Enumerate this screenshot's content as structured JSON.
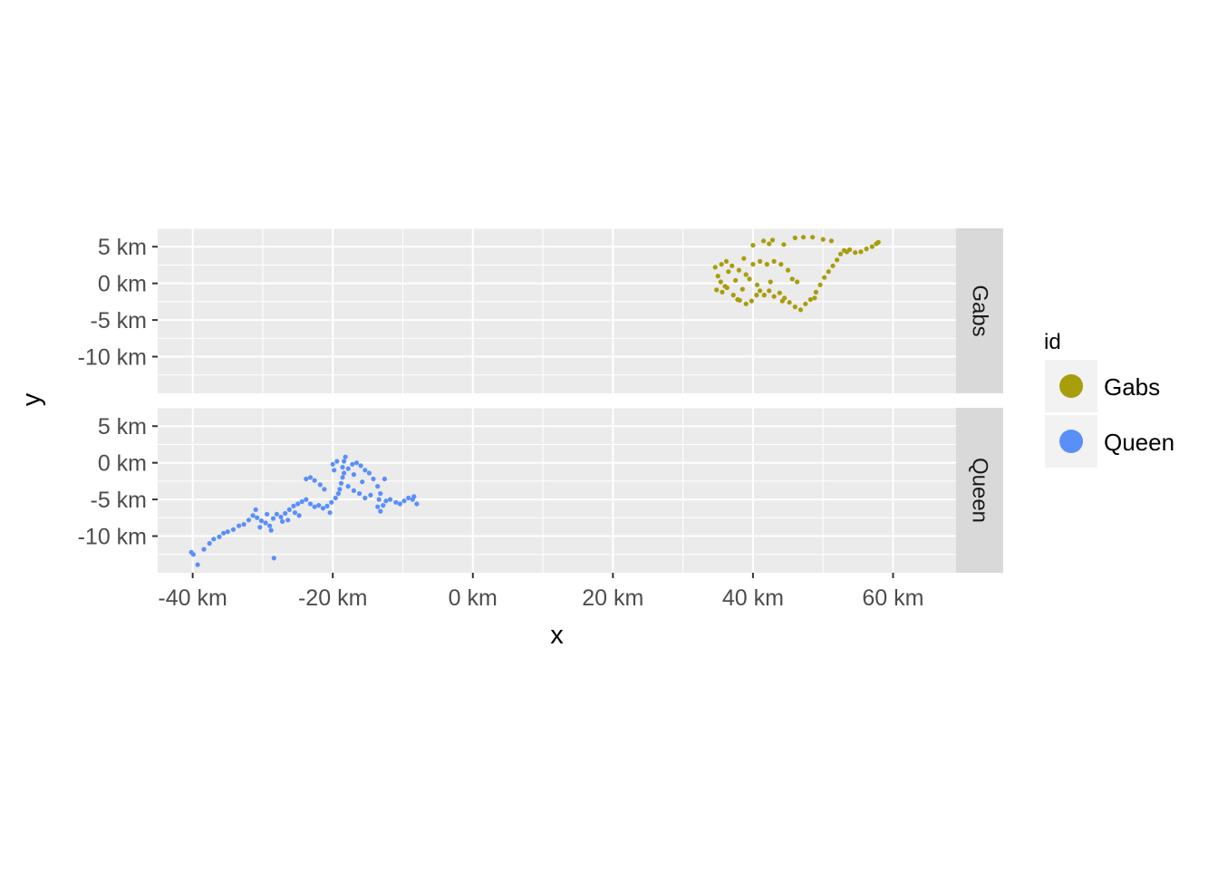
{
  "chart_data": {
    "type": "scatter",
    "facet_by": "id",
    "xlabel": "x",
    "ylabel": "y",
    "xlim": [
      -45,
      69
    ],
    "ylim": [
      -15,
      7.5
    ],
    "x_ticks": [
      -40,
      -20,
      0,
      20,
      40,
      60
    ],
    "x_tick_labels": [
      "-40 km",
      "-20 km",
      "0 km",
      "20 km",
      "40 km",
      "60 km"
    ],
    "y_ticks": [
      5,
      0,
      -5,
      -10
    ],
    "y_tick_labels": [
      "5 km",
      "0 km",
      "-5 km",
      "-10 km"
    ],
    "grid": true,
    "legend": {
      "title": "id",
      "position": "right",
      "entries": [
        "Gabs",
        "Queen"
      ]
    },
    "panels": [
      {
        "strip": "Gabs",
        "color": "#A89D0B",
        "points": [
          [
            34.6,
            2.2
          ],
          [
            35.0,
            1.0
          ],
          [
            35.5,
            2.6
          ],
          [
            36.0,
            -0.4
          ],
          [
            36.5,
            1.6
          ],
          [
            37.0,
            2.4
          ],
          [
            37.5,
            0.4
          ],
          [
            38.0,
            1.8
          ],
          [
            38.5,
            -0.8
          ],
          [
            39.0,
            1.2
          ],
          [
            34.8,
            -0.9
          ],
          [
            35.6,
            -1.2
          ],
          [
            36.3,
            -0.6
          ],
          [
            37.2,
            -1.6
          ],
          [
            38.1,
            -2.3
          ],
          [
            39.0,
            -2.8
          ],
          [
            39.8,
            -2.4
          ],
          [
            40.5,
            -1.6
          ],
          [
            41.0,
            -1.0
          ],
          [
            41.6,
            -1.6
          ],
          [
            42.3,
            -1.0
          ],
          [
            43.0,
            -1.8
          ],
          [
            43.8,
            -1.3
          ],
          [
            44.5,
            -2.0
          ],
          [
            45.2,
            -2.6
          ],
          [
            46.0,
            -3.2
          ],
          [
            46.8,
            -3.6
          ],
          [
            47.5,
            -2.8
          ],
          [
            48.2,
            -2.2
          ],
          [
            49.0,
            -1.2
          ],
          [
            49.6,
            -0.2
          ],
          [
            50.2,
            0.8
          ],
          [
            50.8,
            1.6
          ],
          [
            51.4,
            2.4
          ],
          [
            52.0,
            3.2
          ],
          [
            52.5,
            4.0
          ],
          [
            53.0,
            4.5
          ],
          [
            53.8,
            4.6
          ],
          [
            54.6,
            4.2
          ],
          [
            55.4,
            4.3
          ],
          [
            56.2,
            4.7
          ],
          [
            57.0,
            5.0
          ],
          [
            57.6,
            5.4
          ],
          [
            57.9,
            5.6
          ],
          [
            40.0,
            2.6
          ],
          [
            41.0,
            3.0
          ],
          [
            42.0,
            2.6
          ],
          [
            43.0,
            3.0
          ],
          [
            44.0,
            2.6
          ],
          [
            45.0,
            1.8
          ],
          [
            45.6,
            0.6
          ],
          [
            46.3,
            0.2
          ],
          [
            39.5,
            0.6
          ],
          [
            40.6,
            -0.2
          ],
          [
            42.5,
            0.2
          ],
          [
            41.5,
            5.8
          ],
          [
            42.3,
            5.4
          ],
          [
            42.8,
            5.9
          ],
          [
            44.4,
            5.3
          ],
          [
            46.0,
            6.2
          ],
          [
            47.2,
            6.3
          ],
          [
            48.5,
            6.3
          ],
          [
            50.0,
            6.0
          ],
          [
            51.2,
            5.8
          ],
          [
            40.0,
            5.2
          ],
          [
            38.7,
            3.4
          ],
          [
            36.2,
            3.0
          ],
          [
            35.4,
            0.2
          ],
          [
            37.8,
            -2.2
          ],
          [
            44.2,
            -2.4
          ],
          [
            48.8,
            -2.0
          ],
          [
            53.4,
            4.3
          ]
        ]
      },
      {
        "strip": "Queen",
        "color": "#5A8FF9",
        "points": [
          [
            -40.2,
            -12.2
          ],
          [
            -39.9,
            -12.5
          ],
          [
            -39.3,
            -13.9
          ],
          [
            -38.4,
            -11.8
          ],
          [
            -37.6,
            -11.0
          ],
          [
            -37.0,
            -10.4
          ],
          [
            -36.2,
            -10.1
          ],
          [
            -35.6,
            -9.6
          ],
          [
            -35.0,
            -9.4
          ],
          [
            -34.2,
            -9.1
          ],
          [
            -33.4,
            -8.6
          ],
          [
            -32.7,
            -8.4
          ],
          [
            -32.0,
            -7.8
          ],
          [
            -31.4,
            -7.2
          ],
          [
            -30.8,
            -7.5
          ],
          [
            -30.2,
            -7.9
          ],
          [
            -29.6,
            -8.2
          ],
          [
            -29.0,
            -8.6
          ],
          [
            -28.5,
            -7.6
          ],
          [
            -28.0,
            -7.0
          ],
          [
            -27.4,
            -7.4
          ],
          [
            -26.8,
            -6.9
          ],
          [
            -26.2,
            -6.4
          ],
          [
            -25.6,
            -5.9
          ],
          [
            -25.0,
            -5.6
          ],
          [
            -24.4,
            -5.3
          ],
          [
            -23.8,
            -5.0
          ],
          [
            -23.2,
            -5.6
          ],
          [
            -22.6,
            -6.0
          ],
          [
            -22.0,
            -5.8
          ],
          [
            -21.4,
            -6.2
          ],
          [
            -20.8,
            -5.9
          ],
          [
            -20.2,
            -5.4
          ],
          [
            -19.6,
            -4.8
          ],
          [
            -19.2,
            -4.2
          ],
          [
            -19.0,
            -3.6
          ],
          [
            -18.8,
            -2.8
          ],
          [
            -18.6,
            -2.0
          ],
          [
            -18.4,
            -1.4
          ],
          [
            -18.6,
            -0.6
          ],
          [
            -18.4,
            0.2
          ],
          [
            -18.2,
            0.8
          ],
          [
            -19.4,
            0.2
          ],
          [
            -20.0,
            -0.2
          ],
          [
            -19.8,
            -1.0
          ],
          [
            -17.8,
            -0.8
          ],
          [
            -17.2,
            -0.2
          ],
          [
            -16.6,
            0.0
          ],
          [
            -16.0,
            -0.4
          ],
          [
            -15.4,
            -1.0
          ],
          [
            -14.8,
            -1.4
          ],
          [
            -14.2,
            -2.2
          ],
          [
            -13.6,
            -3.2
          ],
          [
            -13.2,
            -4.2
          ],
          [
            -13.4,
            -5.0
          ],
          [
            -13.6,
            -6.0
          ],
          [
            -13.2,
            -6.6
          ],
          [
            -12.8,
            -5.8
          ],
          [
            -12.4,
            -5.2
          ],
          [
            -11.8,
            -5.0
          ],
          [
            -11.0,
            -5.4
          ],
          [
            -10.4,
            -5.6
          ],
          [
            -9.8,
            -5.2
          ],
          [
            -9.2,
            -4.8
          ],
          [
            -8.6,
            -5.0
          ],
          [
            -8.0,
            -5.6
          ],
          [
            -8.4,
            -4.6
          ],
          [
            -17.8,
            -3.2
          ],
          [
            -17.0,
            -3.8
          ],
          [
            -16.2,
            -4.2
          ],
          [
            -15.4,
            -4.8
          ],
          [
            -14.6,
            -4.4
          ],
          [
            -23.8,
            -2.2
          ],
          [
            -23.2,
            -2.0
          ],
          [
            -22.6,
            -2.4
          ],
          [
            -21.8,
            -3.0
          ],
          [
            -21.2,
            -3.6
          ],
          [
            -25.4,
            -6.8
          ],
          [
            -24.8,
            -7.2
          ],
          [
            -27.2,
            -8.0
          ],
          [
            -26.4,
            -7.8
          ],
          [
            -29.4,
            -7.0
          ],
          [
            -30.4,
            -8.8
          ],
          [
            -28.8,
            -9.2
          ],
          [
            -28.4,
            -13.0
          ],
          [
            -31.0,
            -6.4
          ],
          [
            -20.4,
            -6.8
          ],
          [
            -17.0,
            -1.6
          ],
          [
            -15.8,
            -2.6
          ],
          [
            -12.6,
            -2.2
          ]
        ]
      }
    ]
  }
}
